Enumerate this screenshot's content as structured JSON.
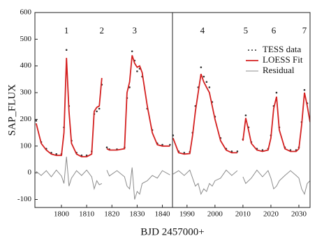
{
  "chart_data": [
    {
      "type": "line",
      "y_label": "SAP_FLUX",
      "x_label": "BJD 2457000+",
      "xlim": [
        1789.5,
        1844
      ],
      "xticks": [
        1800,
        1810,
        1820,
        1830,
        1840
      ],
      "ylim": [
        -130,
        600
      ],
      "yticks": [
        -100,
        0,
        100,
        200,
        300,
        400,
        500,
        600
      ],
      "x": [
        1790,
        1792,
        1794,
        1796,
        1798,
        1800,
        1801,
        1802,
        1803,
        1804,
        1806,
        1808,
        1810,
        1812,
        1813,
        1814,
        1815,
        1816,
        1817,
        1818,
        1819,
        1822,
        1825,
        1826,
        1827,
        1828,
        1829,
        1830,
        1831,
        1832,
        1834,
        1836,
        1838,
        1840,
        1843
      ],
      "series": [
        {
          "style": "scatter",
          "color": "#333333",
          "values": [
            195,
            115,
            90,
            75,
            70,
            70,
            170,
            460,
            250,
            120,
            75,
            65,
            65,
            80,
            220,
            230,
            240,
            330,
            null,
            95,
            88,
            88,
            95,
            280,
            320,
            455,
            420,
            380,
            390,
            360,
            240,
            160,
            110,
            105,
            105
          ]
        },
        {
          "style": "line",
          "color": "#d42020",
          "values": [
            185,
            110,
            85,
            70,
            65,
            65,
            150,
            430,
            230,
            110,
            70,
            60,
            60,
            70,
            230,
            245,
            250,
            355,
            null,
            90,
            85,
            85,
            90,
            300,
            340,
            440,
            410,
            395,
            400,
            375,
            250,
            150,
            105,
            100,
            100
          ]
        },
        {
          "style": "line",
          "color": "#8c8c8c",
          "values": [
            5,
            -10,
            8,
            -15,
            10,
            -12,
            -40,
            60,
            -50,
            -20,
            8,
            -10,
            10,
            -15,
            -60,
            -30,
            -45,
            -40,
            null,
            10,
            -12,
            8,
            -15,
            -50,
            -60,
            20,
            -100,
            -70,
            -80,
            -40,
            -30,
            -10,
            -20,
            8,
            -8
          ]
        }
      ],
      "annotations": [
        {
          "text": "1",
          "x": 1802,
          "y": 530
        },
        {
          "text": "2",
          "x": 1816,
          "y": 530
        },
        {
          "text": "3",
          "x": 1829,
          "y": 530
        }
      ]
    },
    {
      "type": "line",
      "legend": "upper right",
      "xlim": [
        1984.8,
        2034
      ],
      "xticks": [
        1990,
        2000,
        2010,
        2020,
        2030
      ],
      "ylim": [
        -130,
        600
      ],
      "x": [
        1985,
        1987,
        1989,
        1991,
        1992,
        1993,
        1994,
        1995,
        1996,
        1997,
        1998,
        1999,
        2000,
        2002,
        2004,
        2006,
        2008,
        2009,
        2010,
        2011,
        2012,
        2013,
        2015,
        2017,
        2019,
        2020,
        2021,
        2022,
        2023,
        2025,
        2027,
        2029,
        2030,
        2031,
        2032,
        2033,
        2034
      ],
      "series": [
        {
          "name": "TESS data",
          "style": "scatter",
          "color": "#333333",
          "values": [
            140,
            80,
            75,
            78,
            150,
            250,
            320,
            395,
            360,
            340,
            320,
            265,
            210,
            130,
            90,
            80,
            80,
            null,
            125,
            215,
            170,
            115,
            90,
            85,
            90,
            140,
            250,
            300,
            170,
            95,
            85,
            85,
            95,
            190,
            310,
            260,
            200
          ]
        },
        {
          "name": "LOESS Fit",
          "style": "line",
          "color": "#d42020",
          "values": [
            130,
            75,
            70,
            72,
            140,
            230,
            300,
            370,
            340,
            320,
            300,
            250,
            200,
            120,
            85,
            75,
            75,
            null,
            120,
            205,
            160,
            110,
            85,
            80,
            85,
            130,
            240,
            285,
            160,
            90,
            80,
            80,
            90,
            180,
            300,
            250,
            190
          ]
        },
        {
          "name": "Residual",
          "style": "line",
          "color": "#8c8c8c",
          "values": [
            -5,
            8,
            -10,
            10,
            -20,
            -50,
            -40,
            -80,
            -60,
            -70,
            -40,
            -50,
            -30,
            -20,
            10,
            -10,
            8,
            null,
            -15,
            -40,
            -30,
            -20,
            10,
            -15,
            8,
            -20,
            -60,
            -50,
            -30,
            -10,
            8,
            -10,
            -20,
            -60,
            -80,
            -40,
            -30
          ]
        }
      ],
      "annotations": [
        {
          "text": "4",
          "x": 1995.5,
          "y": 530
        },
        {
          "text": "5",
          "x": 2011,
          "y": 530
        },
        {
          "text": "6",
          "x": 2021,
          "y": 530
        },
        {
          "text": "7",
          "x": 2032,
          "y": 530
        }
      ]
    }
  ]
}
